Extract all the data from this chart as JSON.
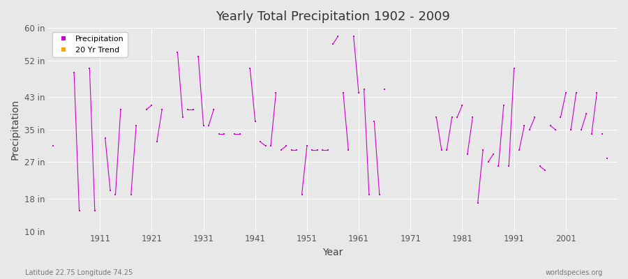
{
  "title": "Yearly Total Precipitation 1902 - 2009",
  "xlabel": "Year",
  "ylabel": "Precipitation",
  "lat_lon_label": "Latitude 22.75 Longitude 74.25",
  "watermark": "worldspecies.org",
  "ylim": [
    10,
    60
  ],
  "xlim": [
    1901,
    2011
  ],
  "yticks": [
    10,
    18,
    27,
    35,
    43,
    52,
    60
  ],
  "ytick_labels": [
    "10 in",
    "18 in",
    "27 in",
    "35 in",
    "43 in",
    "52 in",
    "60 in"
  ],
  "xticks": [
    1911,
    1921,
    1931,
    1941,
    1951,
    1961,
    1971,
    1981,
    1991,
    2001
  ],
  "line_color": "#CC00CC",
  "marker": "s",
  "marker_size": 2,
  "background_color": "#E8E8E8",
  "grid_color": "#FFFFFF",
  "legend_entries": [
    "Precipitation",
    "20 Yr Trend"
  ],
  "legend_colors": [
    "#CC00CC",
    "#FFA500"
  ],
  "segments": [
    {
      "years": [
        1902
      ],
      "values": [
        31
      ]
    },
    {
      "years": [
        1906,
        1907
      ],
      "values": [
        49,
        15
      ]
    },
    {
      "years": [
        1909,
        1910
      ],
      "values": [
        50,
        15
      ]
    },
    {
      "years": [
        1912,
        1913
      ],
      "values": [
        33,
        20
      ]
    },
    {
      "years": [
        1914,
        1915
      ],
      "values": [
        19,
        40
      ]
    },
    {
      "years": [
        1917,
        1918
      ],
      "values": [
        19,
        36
      ]
    },
    {
      "years": [
        1920,
        1921
      ],
      "values": [
        40,
        41
      ]
    },
    {
      "years": [
        1922,
        1923
      ],
      "values": [
        32,
        40
      ]
    },
    {
      "years": [
        1926,
        1927
      ],
      "values": [
        54,
        38
      ]
    },
    {
      "years": [
        1928,
        1929
      ],
      "values": [
        40,
        40
      ]
    },
    {
      "years": [
        1930,
        1931
      ],
      "values": [
        53,
        36
      ]
    },
    {
      "years": [
        1932,
        1933
      ],
      "values": [
        36,
        40
      ]
    },
    {
      "years": [
        1934,
        1935
      ],
      "values": [
        34,
        34
      ]
    },
    {
      "years": [
        1937,
        1938
      ],
      "values": [
        34,
        34
      ]
    },
    {
      "years": [
        1940,
        1941
      ],
      "values": [
        50,
        37
      ]
    },
    {
      "years": [
        1942,
        1943
      ],
      "values": [
        32,
        31
      ]
    },
    {
      "years": [
        1944,
        1945
      ],
      "values": [
        31,
        44
      ]
    },
    {
      "years": [
        1946,
        1947
      ],
      "values": [
        30,
        31
      ]
    },
    {
      "years": [
        1948,
        1949
      ],
      "values": [
        30,
        30
      ]
    },
    {
      "years": [
        1950,
        1951
      ],
      "values": [
        19,
        31
      ]
    },
    {
      "years": [
        1952,
        1953
      ],
      "values": [
        30,
        30
      ]
    },
    {
      "years": [
        1954,
        1955
      ],
      "values": [
        30,
        30
      ]
    },
    {
      "years": [
        1956,
        1957
      ],
      "values": [
        56,
        58
      ]
    },
    {
      "years": [
        1958,
        1959
      ],
      "values": [
        44,
        30
      ]
    },
    {
      "years": [
        1960,
        1961
      ],
      "values": [
        58,
        44
      ]
    },
    {
      "years": [
        1962,
        1963
      ],
      "values": [
        45,
        19
      ]
    },
    {
      "years": [
        1964,
        1965
      ],
      "values": [
        37,
        19
      ]
    },
    {
      "years": [
        1966
      ],
      "values": [
        45
      ]
    },
    {
      "years": [
        1976,
        1977
      ],
      "values": [
        38,
        30
      ]
    },
    {
      "years": [
        1978,
        1979
      ],
      "values": [
        30,
        38
      ]
    },
    {
      "years": [
        1980,
        1981
      ],
      "values": [
        38,
        41
      ]
    },
    {
      "years": [
        1982,
        1983
      ],
      "values": [
        29,
        38
      ]
    },
    {
      "years": [
        1984,
        1985
      ],
      "values": [
        17,
        30
      ]
    },
    {
      "years": [
        1986,
        1987
      ],
      "values": [
        27,
        29
      ]
    },
    {
      "years": [
        1988,
        1989
      ],
      "values": [
        26,
        41
      ]
    },
    {
      "years": [
        1990,
        1991
      ],
      "values": [
        26,
        50
      ]
    },
    {
      "years": [
        1992,
        1993
      ],
      "values": [
        30,
        36
      ]
    },
    {
      "years": [
        1994,
        1995
      ],
      "values": [
        35,
        38
      ]
    },
    {
      "years": [
        1996,
        1997
      ],
      "values": [
        26,
        25
      ]
    },
    {
      "years": [
        1998,
        1999
      ],
      "values": [
        36,
        35
      ]
    },
    {
      "years": [
        2000,
        2001
      ],
      "values": [
        38,
        44
      ]
    },
    {
      "years": [
        2002,
        2003
      ],
      "values": [
        35,
        44
      ]
    },
    {
      "years": [
        2004,
        2005
      ],
      "values": [
        35,
        39
      ]
    },
    {
      "years": [
        2006,
        2007
      ],
      "values": [
        34,
        44
      ]
    },
    {
      "years": [
        2008
      ],
      "values": [
        34
      ]
    },
    {
      "years": [
        2009
      ],
      "values": [
        28
      ]
    }
  ]
}
